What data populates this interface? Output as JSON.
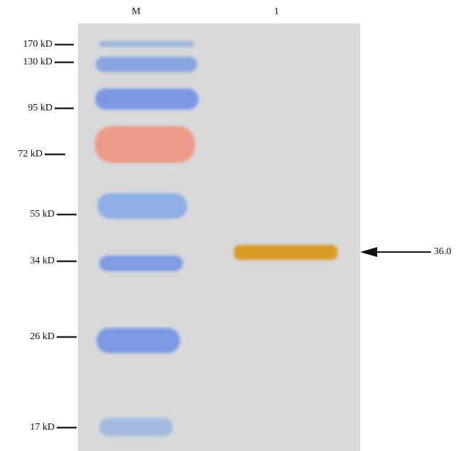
{
  "lanes": [
    "M",
    "1"
  ],
  "markers": [
    "170 kD",
    "130 kD",
    "95 kD",
    "72 kD",
    "55 kD",
    "34 kD",
    "26 kD",
    "17 kD"
  ],
  "annotation": "36.0"
}
